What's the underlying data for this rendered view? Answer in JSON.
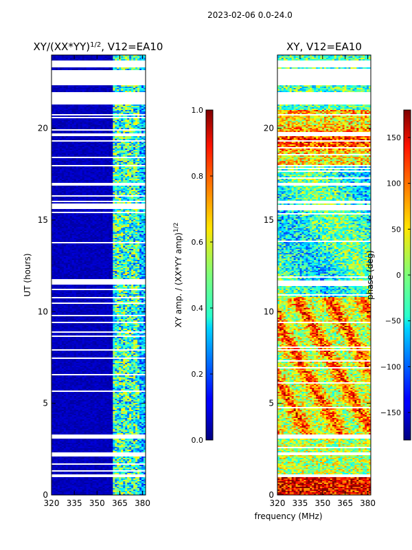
{
  "suptitle": "2023-02-06 0.0-24.0",
  "xlabel": "frequency (MHz)",
  "chart_data": [
    {
      "type": "heatmap",
      "title_main": "XY/(XX*YY)",
      "title_sup": "1/2",
      "title_rest": ", V12=EA10",
      "xlabel": "frequency (MHz)",
      "ylabel": "UT (hours)",
      "xlim": [
        320,
        382
      ],
      "ylim": [
        0,
        24
      ],
      "xticks": [
        320,
        335,
        350,
        365,
        380
      ],
      "yticks": [
        0,
        5,
        10,
        15,
        20
      ],
      "colorbar": {
        "label_main": "XY amp. / (XX*YY amp)",
        "label_sup": "1/2",
        "range": [
          0.0,
          1.0
        ],
        "ticks": [
          "0.0",
          "0.2",
          "0.4",
          "0.6",
          "0.8",
          "1.0"
        ],
        "tick_values": [
          0.0,
          0.2,
          0.4,
          0.6,
          0.8,
          1.0
        ]
      },
      "colormap": "jet"
    },
    {
      "type": "heatmap",
      "title": "XY, V12=EA10",
      "xlabel": "frequency (MHz)",
      "ylabel": "",
      "xlim": [
        320,
        382
      ],
      "ylim": [
        0,
        24
      ],
      "xticks": [
        320,
        335,
        350,
        365,
        380
      ],
      "yticks": [
        0,
        5,
        10,
        15,
        20
      ],
      "colorbar": {
        "label": "phase (deg)",
        "range": [
          -180,
          180
        ],
        "ticks": [
          "−150",
          "−100",
          "−50",
          "0",
          "50",
          "100",
          "150"
        ],
        "tick_values": [
          -150,
          -100,
          -50,
          0,
          50,
          100,
          150
        ]
      },
      "colormap": "jet"
    }
  ],
  "data_gaps_hours": [
    [
      23.3,
      23.7
    ],
    [
      21.3,
      22.0
    ],
    [
      22.35,
      23.2
    ],
    [
      20.7,
      20.8
    ],
    [
      19.55,
      19.7
    ],
    [
      19.25,
      19.35
    ],
    [
      17.9,
      18.0
    ],
    [
      16.9,
      17.0
    ],
    [
      15.6,
      15.8
    ],
    [
      15.95,
      16.05
    ],
    [
      11.45,
      11.7
    ],
    [
      3.1,
      3.3
    ],
    [
      0.95,
      1.1
    ],
    [
      2.2,
      2.3
    ],
    [
      7.85,
      7.95
    ],
    [
      9.35,
      9.45
    ]
  ]
}
